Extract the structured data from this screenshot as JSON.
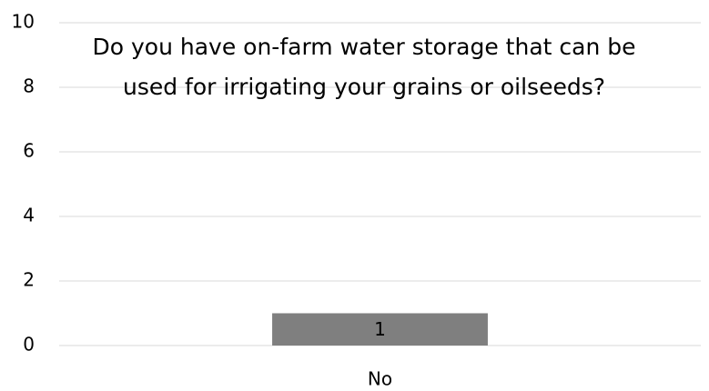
{
  "chart_data": {
    "type": "bar",
    "title": "Do you have on-farm water storage that can be used for irrigating your grains or oilseeds?",
    "categories": [
      "No"
    ],
    "values": [
      1
    ],
    "color": "#7f7f7f",
    "ylim": [
      0,
      10
    ],
    "yticks": [
      0,
      2,
      4,
      6,
      8,
      10
    ],
    "grid": true
  }
}
